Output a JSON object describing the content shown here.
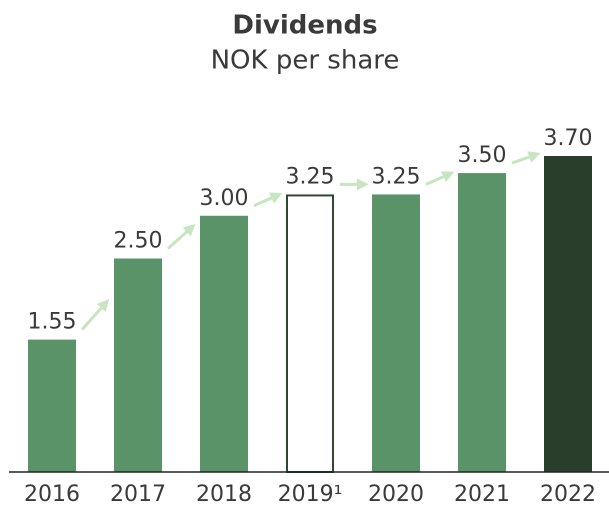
{
  "chart_data": {
    "type": "bar",
    "title": "Dividends",
    "subtitle": "NOK per share",
    "categories": [
      "2016",
      "2017",
      "2018",
      "2019¹",
      "2020",
      "2021",
      "2022"
    ],
    "values": [
      1.55,
      2.5,
      3.0,
      3.25,
      3.25,
      3.5,
      3.7
    ],
    "value_labels": [
      "1.55",
      "2.50",
      "3.00",
      "3.25",
      "3.25",
      "3.50",
      "3.70"
    ],
    "colors": [
      "#5a9367",
      "#5a9367",
      "#5a9367",
      "#ffffff",
      "#5a9367",
      "#5a9367",
      "#2a3f2b"
    ],
    "outline_color": "#2d4a30",
    "arrow_color": "#c6e5c0"
  }
}
